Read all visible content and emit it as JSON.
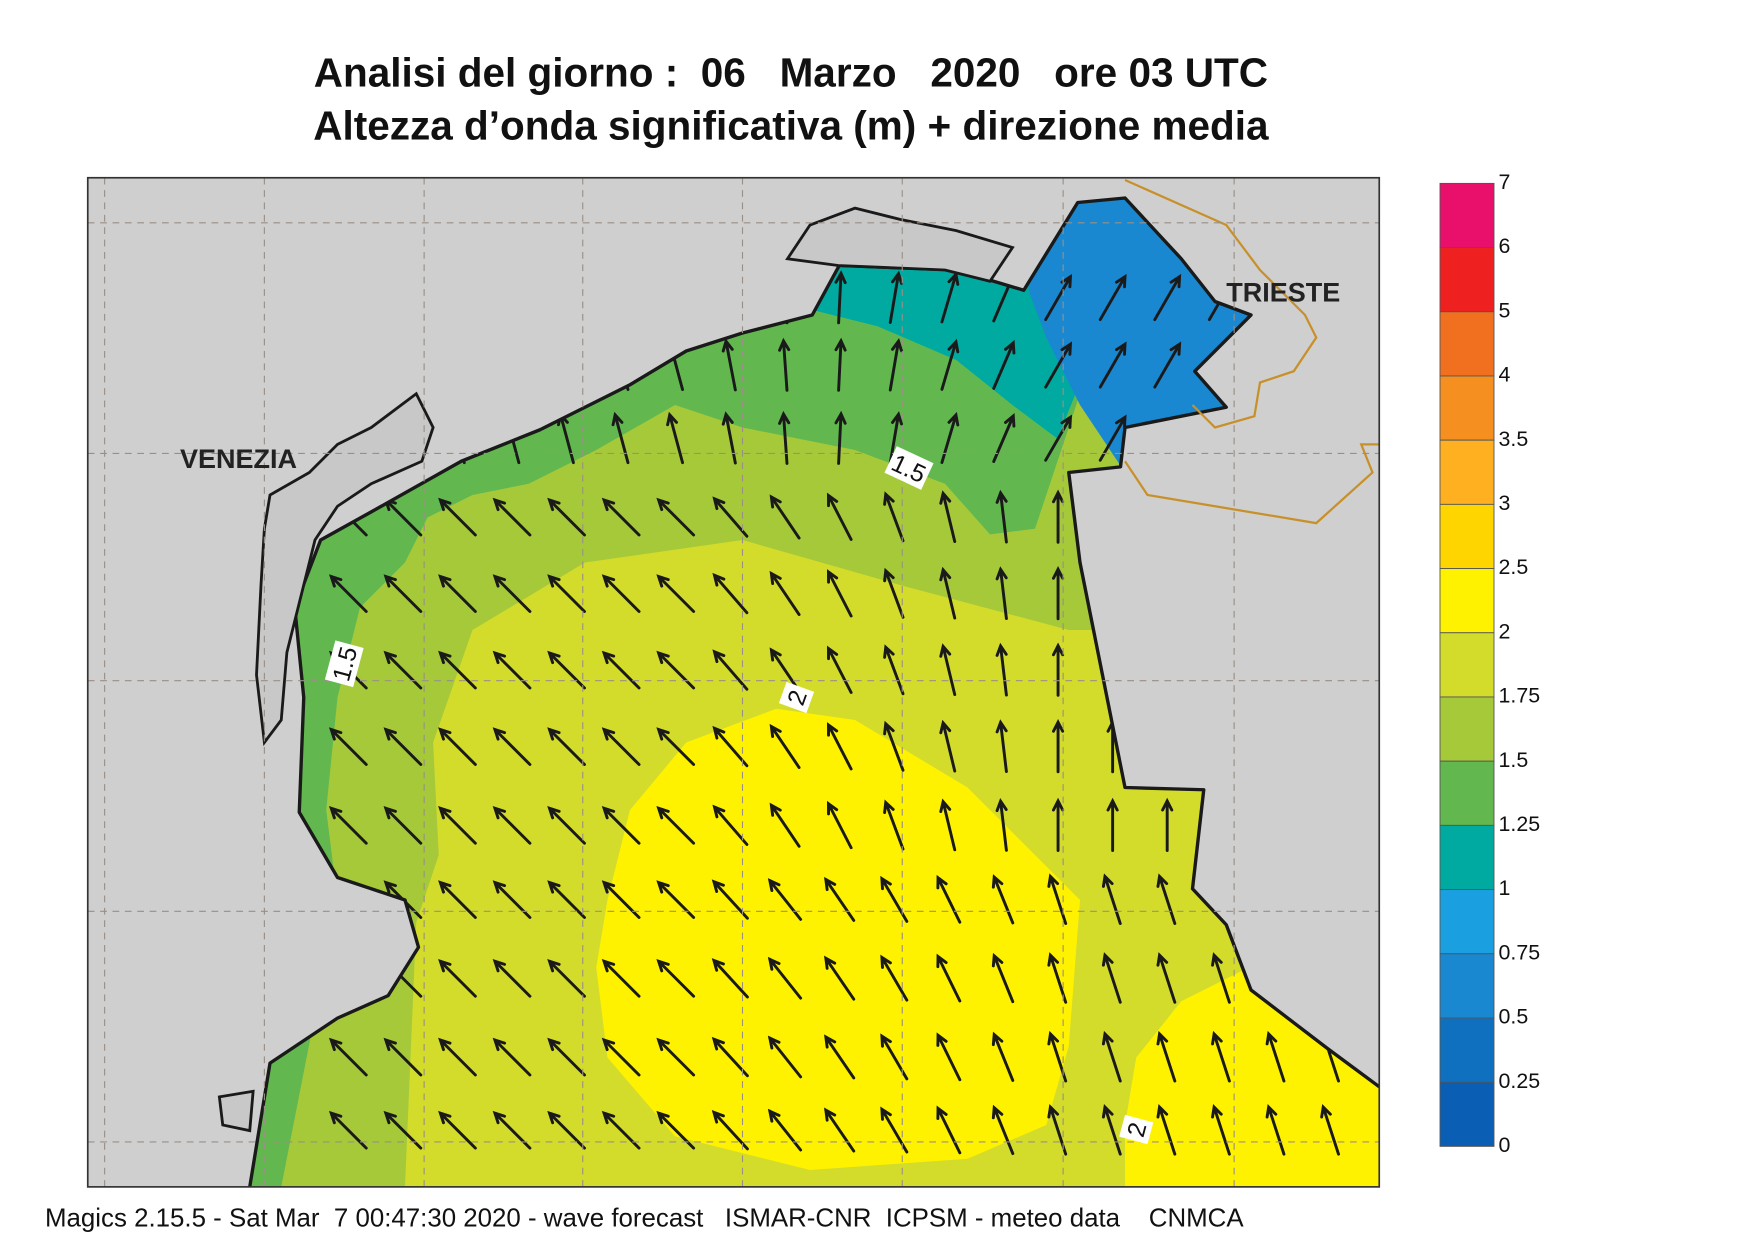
{
  "header": {
    "title_line1": "Analisi del giorno :  06   Marzo   2020   ore 03 UTC",
    "title_line2": "Altezza d’onda significativa (m) + direzione media"
  },
  "map": {
    "cities": [
      "VENEZIA",
      "TRIESTE"
    ],
    "contour_labels": [
      "1.5",
      "1.5",
      "2",
      "2"
    ]
  },
  "colorbar": {
    "ticks": [
      "7",
      "6",
      "5",
      "4",
      "3.5",
      "3",
      "2.5",
      "2",
      "1.75",
      "1.5",
      "1.25",
      "1",
      "0.75",
      "0.5",
      "0.25",
      "0"
    ],
    "colors": [
      "#e8106a",
      "#ee2020",
      "#f07020",
      "#f59020",
      "#ffb020",
      "#ffd500",
      "#fff200",
      "#d4dc2b",
      "#a6c93a",
      "#62b84e",
      "#00aaa0",
      "#1aa0e0",
      "#1a88d0",
      "#0f70c0",
      "#0a5fb4"
    ]
  },
  "footer": {
    "text": "Magics 2.15.5 - Sat Mar  7 00:47:30 2020 - wave forecast   ISMAR-CNR  ICPSM - meteo data    CNMCA"
  }
}
